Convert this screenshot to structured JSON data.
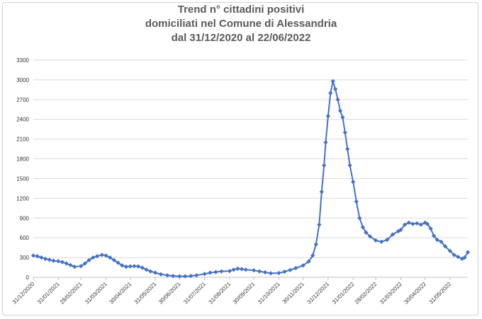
{
  "chart_data": {
    "type": "line",
    "title_lines": [
      "Trend n° cittadini positivi",
      "domiciliati nel Comune di Alessandria",
      "dal 31/12/2020 al 22/06/2022"
    ],
    "xlabel": "",
    "ylabel": "",
    "ylim": [
      0,
      3300
    ],
    "y_ticks": [
      0,
      300,
      600,
      900,
      1200,
      1500,
      1800,
      2100,
      2400,
      2700,
      3000,
      3300
    ],
    "x_ticks": [
      "31/12/2020",
      "31/01/2021",
      "28/02/2021",
      "31/03/2021",
      "30/04/2021",
      "31/05/2021",
      "30/06/2021",
      "31/07/2021",
      "31/08/2021",
      "30/09/2021",
      "31/10/2021",
      "30/11/2021",
      "31/12/2021",
      "31/01/2022",
      "28/02/2022",
      "31/03/2022",
      "30/04/2022",
      "31/05/2022"
    ],
    "grid": true,
    "legend": "none",
    "series_color": "#4472c4",
    "series": [
      {
        "values": [
          [
            "2020-12-31",
            330
          ],
          [
            "2021-01-05",
            320
          ],
          [
            "2021-01-10",
            300
          ],
          [
            "2021-01-15",
            280
          ],
          [
            "2021-01-20",
            265
          ],
          [
            "2021-01-25",
            250
          ],
          [
            "2021-01-31",
            245
          ],
          [
            "2021-02-05",
            230
          ],
          [
            "2021-02-10",
            210
          ],
          [
            "2021-02-15",
            185
          ],
          [
            "2021-02-20",
            160
          ],
          [
            "2021-02-28",
            170
          ],
          [
            "2021-03-05",
            210
          ],
          [
            "2021-03-10",
            260
          ],
          [
            "2021-03-15",
            300
          ],
          [
            "2021-03-20",
            320
          ],
          [
            "2021-03-26",
            340
          ],
          [
            "2021-03-31",
            330
          ],
          [
            "2021-04-05",
            300
          ],
          [
            "2021-04-10",
            260
          ],
          [
            "2021-04-15",
            220
          ],
          [
            "2021-04-20",
            180
          ],
          [
            "2021-04-25",
            160
          ],
          [
            "2021-04-30",
            165
          ],
          [
            "2021-05-05",
            170
          ],
          [
            "2021-05-10",
            165
          ],
          [
            "2021-05-15",
            145
          ],
          [
            "2021-05-20",
            115
          ],
          [
            "2021-05-25",
            90
          ],
          [
            "2021-05-31",
            70
          ],
          [
            "2021-06-07",
            45
          ],
          [
            "2021-06-15",
            30
          ],
          [
            "2021-06-22",
            20
          ],
          [
            "2021-06-30",
            15
          ],
          [
            "2021-07-07",
            15
          ],
          [
            "2021-07-14",
            20
          ],
          [
            "2021-07-21",
            30
          ],
          [
            "2021-07-31",
            50
          ],
          [
            "2021-08-07",
            70
          ],
          [
            "2021-08-14",
            80
          ],
          [
            "2021-08-21",
            90
          ],
          [
            "2021-08-31",
            95
          ],
          [
            "2021-09-05",
            115
          ],
          [
            "2021-09-10",
            130
          ],
          [
            "2021-09-15",
            125
          ],
          [
            "2021-09-20",
            115
          ],
          [
            "2021-09-30",
            105
          ],
          [
            "2021-10-07",
            90
          ],
          [
            "2021-10-14",
            75
          ],
          [
            "2021-10-21",
            60
          ],
          [
            "2021-10-31",
            65
          ],
          [
            "2021-11-07",
            85
          ],
          [
            "2021-11-14",
            110
          ],
          [
            "2021-11-21",
            140
          ],
          [
            "2021-11-30",
            180
          ],
          [
            "2021-12-07",
            240
          ],
          [
            "2021-12-12",
            330
          ],
          [
            "2021-12-16",
            500
          ],
          [
            "2021-12-20",
            800
          ],
          [
            "2021-12-23",
            1300
          ],
          [
            "2021-12-26",
            1700
          ],
          [
            "2021-12-28",
            2050
          ],
          [
            "2021-12-31",
            2450
          ],
          [
            "2022-01-03",
            2800
          ],
          [
            "2022-01-06",
            2980
          ],
          [
            "2022-01-09",
            2860
          ],
          [
            "2022-01-12",
            2700
          ],
          [
            "2022-01-15",
            2530
          ],
          [
            "2022-01-18",
            2430
          ],
          [
            "2022-01-21",
            2200
          ],
          [
            "2022-01-24",
            1950
          ],
          [
            "2022-01-27",
            1700
          ],
          [
            "2022-01-31",
            1450
          ],
          [
            "2022-02-04",
            1150
          ],
          [
            "2022-02-08",
            900
          ],
          [
            "2022-02-12",
            760
          ],
          [
            "2022-02-16",
            680
          ],
          [
            "2022-02-21",
            620
          ],
          [
            "2022-02-28",
            560
          ],
          [
            "2022-03-07",
            540
          ],
          [
            "2022-03-14",
            570
          ],
          [
            "2022-03-21",
            650
          ],
          [
            "2022-03-28",
            700
          ],
          [
            "2022-03-31",
            720
          ],
          [
            "2022-04-05",
            800
          ],
          [
            "2022-04-10",
            830
          ],
          [
            "2022-04-15",
            810
          ],
          [
            "2022-04-20",
            820
          ],
          [
            "2022-04-25",
            800
          ],
          [
            "2022-04-30",
            830
          ],
          [
            "2022-05-03",
            810
          ],
          [
            "2022-05-07",
            740
          ],
          [
            "2022-05-11",
            630
          ],
          [
            "2022-05-15",
            570
          ],
          [
            "2022-05-20",
            540
          ],
          [
            "2022-05-25",
            470
          ],
          [
            "2022-05-31",
            400
          ],
          [
            "2022-06-05",
            340
          ],
          [
            "2022-06-10",
            310
          ],
          [
            "2022-06-15",
            280
          ],
          [
            "2022-06-18",
            300
          ],
          [
            "2022-06-22",
            380
          ]
        ]
      }
    ]
  }
}
